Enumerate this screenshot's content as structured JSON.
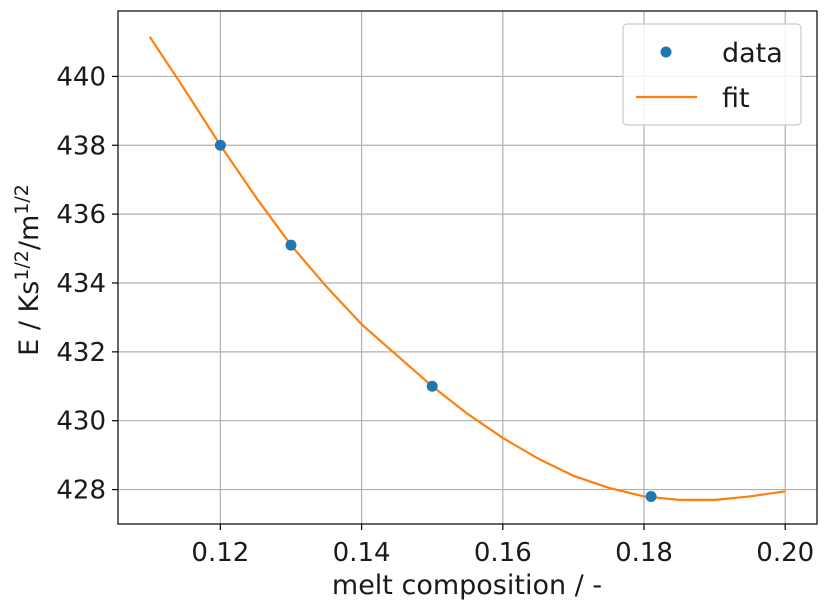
{
  "chart_data": {
    "type": "scatter",
    "title": "",
    "xlabel": "melt composition / -",
    "ylabel": {
      "base": "E / Ks",
      "sup1": "1/2",
      "mid": "/m",
      "sup2": "1/2"
    },
    "xlim": [
      0.1055,
      0.2045
    ],
    "ylim": [
      427.0,
      441.9
    ],
    "x_ticks": [
      0.12,
      0.14,
      0.16,
      0.18,
      0.2
    ],
    "x_tick_labels": [
      "0.12",
      "0.14",
      "0.16",
      "0.18",
      "0.20"
    ],
    "y_ticks": [
      428,
      430,
      432,
      434,
      436,
      438,
      440
    ],
    "y_tick_labels": [
      "428",
      "430",
      "432",
      "434",
      "436",
      "438",
      "440"
    ],
    "grid": true,
    "legend_position": "top-right",
    "series": [
      {
        "name": "data",
        "kind": "scatter",
        "color": "#1f77b4",
        "points": [
          {
            "x": 0.12,
            "y": 438.0
          },
          {
            "x": 0.13,
            "y": 435.1
          },
          {
            "x": 0.15,
            "y": 431.0
          },
          {
            "x": 0.181,
            "y": 427.8
          }
        ]
      },
      {
        "name": "fit",
        "kind": "line",
        "color": "#ff7f0e",
        "points": [
          {
            "x": 0.11,
            "y": 441.15
          },
          {
            "x": 0.115,
            "y": 439.6
          },
          {
            "x": 0.12,
            "y": 438.0
          },
          {
            "x": 0.125,
            "y": 436.5
          },
          {
            "x": 0.13,
            "y": 435.1
          },
          {
            "x": 0.135,
            "y": 433.9
          },
          {
            "x": 0.14,
            "y": 432.8
          },
          {
            "x": 0.145,
            "y": 431.9
          },
          {
            "x": 0.15,
            "y": 431.0
          },
          {
            "x": 0.155,
            "y": 430.2
          },
          {
            "x": 0.16,
            "y": 429.5
          },
          {
            "x": 0.165,
            "y": 428.9
          },
          {
            "x": 0.17,
            "y": 428.4
          },
          {
            "x": 0.175,
            "y": 428.05
          },
          {
            "x": 0.18,
            "y": 427.8
          },
          {
            "x": 0.185,
            "y": 427.7
          },
          {
            "x": 0.19,
            "y": 427.7
          },
          {
            "x": 0.195,
            "y": 427.8
          },
          {
            "x": 0.2,
            "y": 427.95
          }
        ]
      }
    ]
  }
}
